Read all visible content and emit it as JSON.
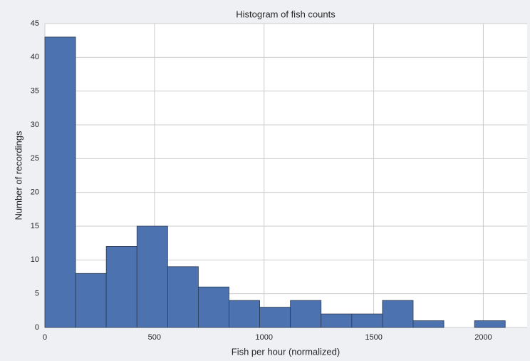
{
  "chart_data": {
    "type": "histogram",
    "title": "Histogram of fish counts",
    "x_label": "Fish per hour (normalized)",
    "y_label": "Number of recordings",
    "bins": [
      0,
      140,
      280,
      420,
      560,
      700,
      840,
      980,
      1120,
      1260,
      1400,
      1540,
      1680,
      1820,
      1960,
      2100
    ],
    "values": [
      43,
      8,
      12,
      15,
      9,
      6,
      4,
      3,
      4,
      2,
      2,
      4,
      1,
      0,
      1
    ],
    "color": "#4c72b0",
    "xlim": [
      0,
      2200
    ],
    "xticks": [
      0,
      500,
      1000,
      1500,
      2000
    ],
    "ylim": [
      0,
      45
    ],
    "yticks": [
      0,
      5,
      10,
      15,
      20,
      25,
      30,
      35,
      40,
      45
    ],
    "grid": true
  }
}
